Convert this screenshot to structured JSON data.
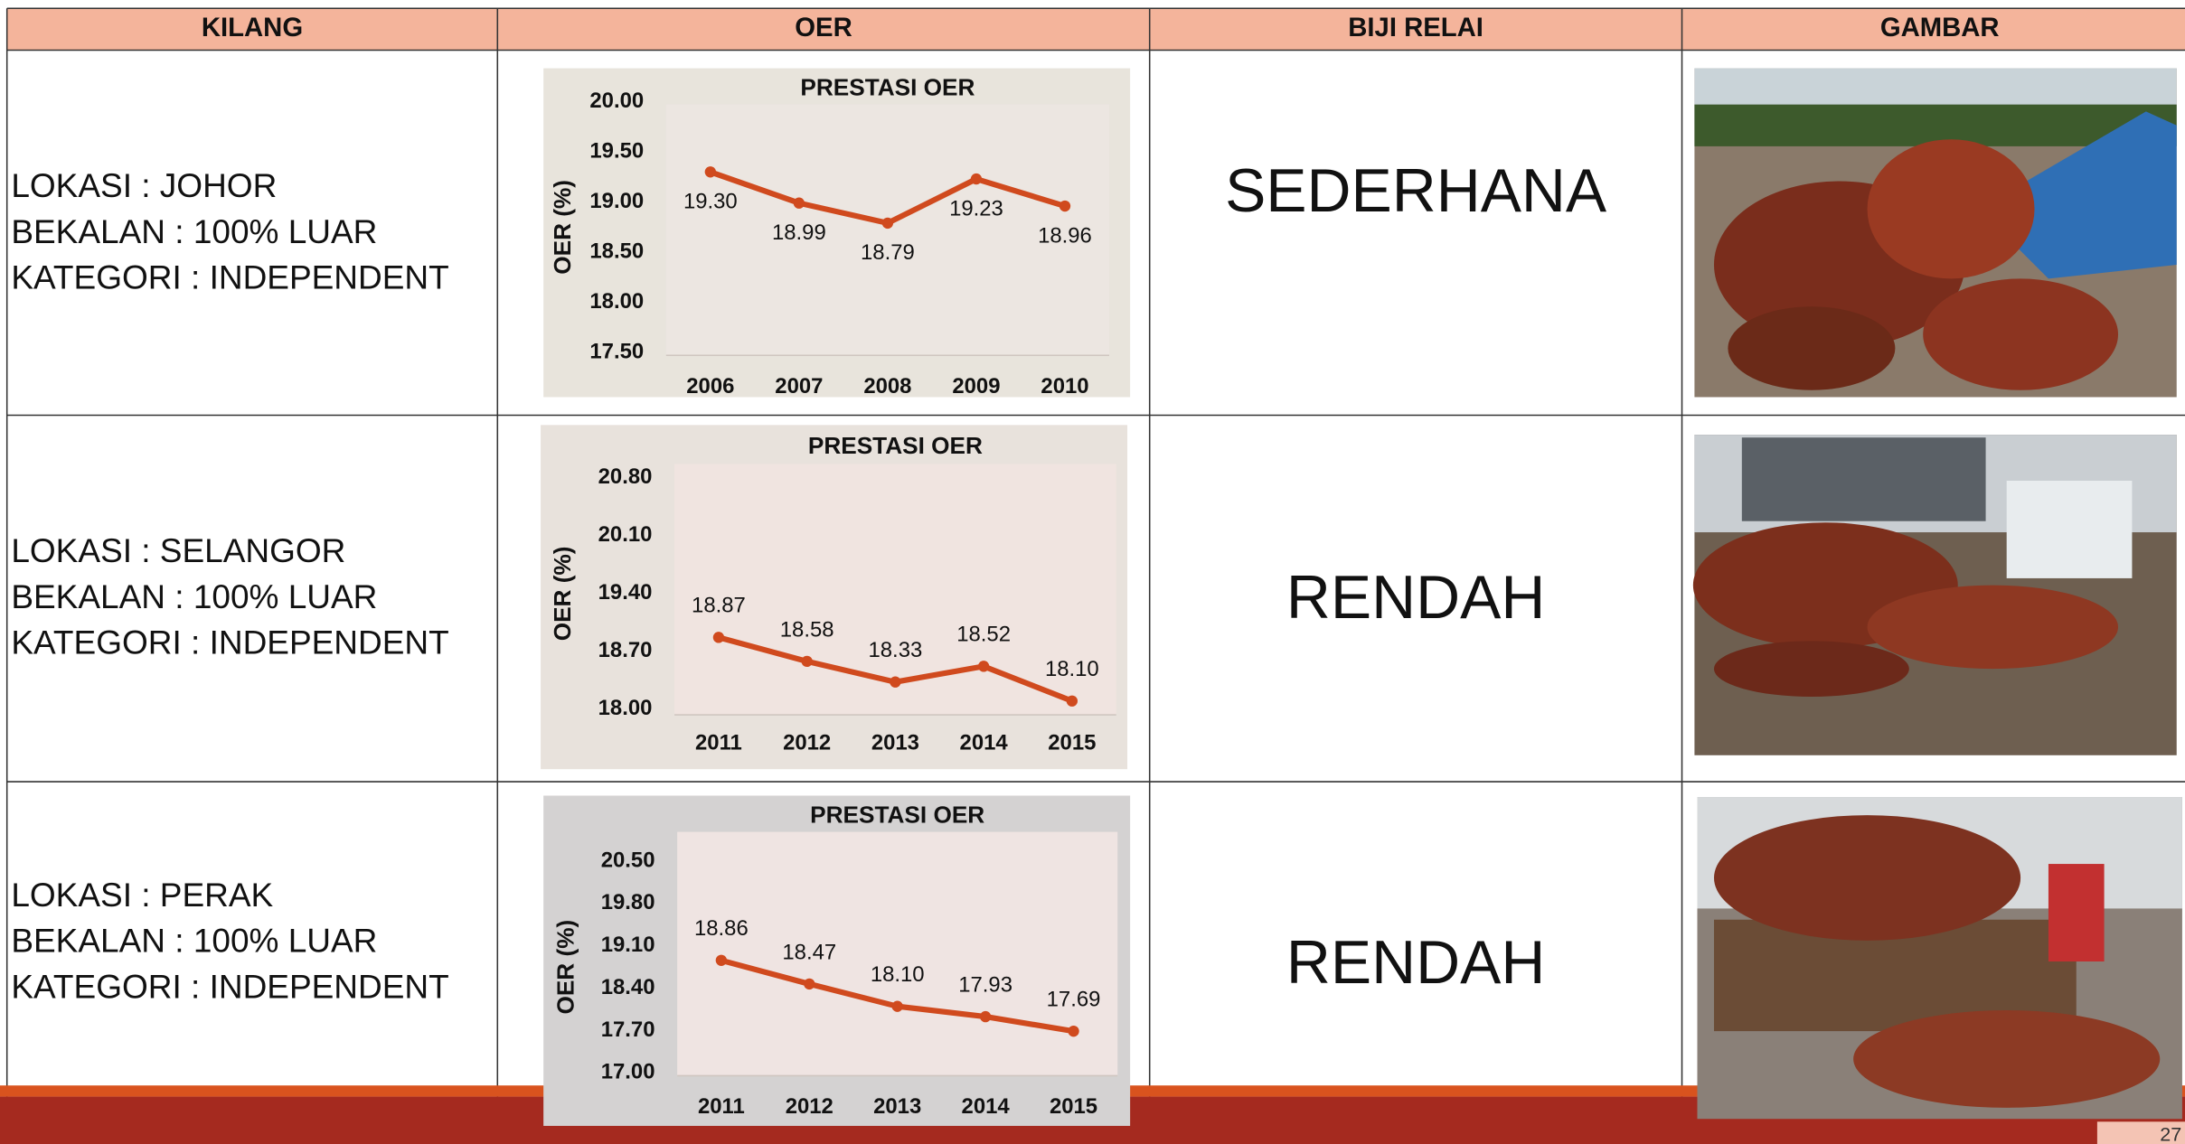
{
  "table": {
    "headers": [
      "KILANG",
      "OER",
      "BIJI RELAI",
      "GAMBAR"
    ],
    "rows": [
      {
        "kilang": [
          "LOKASI : JOHOR",
          "BEKALAN : 100% LUAR",
          "KATEGORI : INDEPENDENT"
        ],
        "biji_relai": "SEDERHANA"
      },
      {
        "kilang": [
          "LOKASI : SELANGOR",
          "BEKALAN : 100% LUAR",
          "KATEGORI : INDEPENDENT"
        ],
        "biji_relai": "RENDAH"
      },
      {
        "kilang": [
          "LOKASI : PERAK",
          "BEKALAN : 100% LUAR",
          "KATEGORI : INDEPENDENT"
        ],
        "biji_relai": "RENDAH"
      }
    ]
  },
  "chart_data": [
    {
      "type": "line",
      "title": "PRESTASI OER",
      "y_label": "OER (%)",
      "categories": [
        "2006",
        "2007",
        "2008",
        "2009",
        "2010"
      ],
      "values": [
        19.3,
        18.99,
        18.79,
        19.23,
        18.96
      ],
      "value_labels": [
        "19.30",
        "18.99",
        "18.79",
        "19.23",
        "18.96"
      ],
      "color": "#d04a1e",
      "ylim": [
        17.5,
        20.0
      ],
      "yticks": [
        {
          "value": 17.5,
          "label": "17.50"
        },
        {
          "value": 18,
          "label": "18.00"
        },
        {
          "value": 18.5,
          "label": "18.50"
        },
        {
          "value": 19,
          "label": "19.00"
        },
        {
          "value": 19.5,
          "label": "19.50"
        },
        {
          "value": 20,
          "label": "20.00"
        }
      ]
    },
    {
      "type": "line",
      "title": "PRESTASI OER",
      "y_label": "OER (%)",
      "categories": [
        "2011",
        "2012",
        "2013",
        "2014",
        "2015"
      ],
      "values": [
        18.87,
        18.58,
        18.33,
        18.52,
        18.1
      ],
      "value_labels": [
        "18.87",
        "18.58",
        "18.33",
        "18.52",
        "18.10"
      ],
      "color": "#d04a1e",
      "ylim": [
        18.0,
        20.8
      ],
      "yticks": [
        {
          "value": 18,
          "label": "18.00"
        },
        {
          "value": 18.7,
          "label": "18.70"
        },
        {
          "value": 19.4,
          "label": "19.40"
        },
        {
          "value": 20.1,
          "label": "20.10"
        },
        {
          "value": 20.8,
          "label": "20.80"
        }
      ]
    },
    {
      "type": "line",
      "title": "PRESTASI OER",
      "y_label": "OER (%)",
      "categories": [
        "2011",
        "2012",
        "2013",
        "2014",
        "2015"
      ],
      "values": [
        18.86,
        18.47,
        18.1,
        17.93,
        17.69
      ],
      "value_labels": [
        "18.86",
        "18.47",
        "18.10",
        "17.93",
        "17.69"
      ],
      "color": "#d04a1e",
      "ylim": [
        17.0,
        20.5
      ],
      "yticks": [
        {
          "value": 17,
          "label": "17.00"
        },
        {
          "value": 17.7,
          "label": "17.70"
        },
        {
          "value": 18.4,
          "label": "18.40"
        },
        {
          "value": 19.1,
          "label": "19.10"
        },
        {
          "value": 19.8,
          "label": "19.80"
        },
        {
          "value": 20.5,
          "label": "20.50"
        }
      ]
    }
  ],
  "footer": {
    "page_number": "27"
  }
}
